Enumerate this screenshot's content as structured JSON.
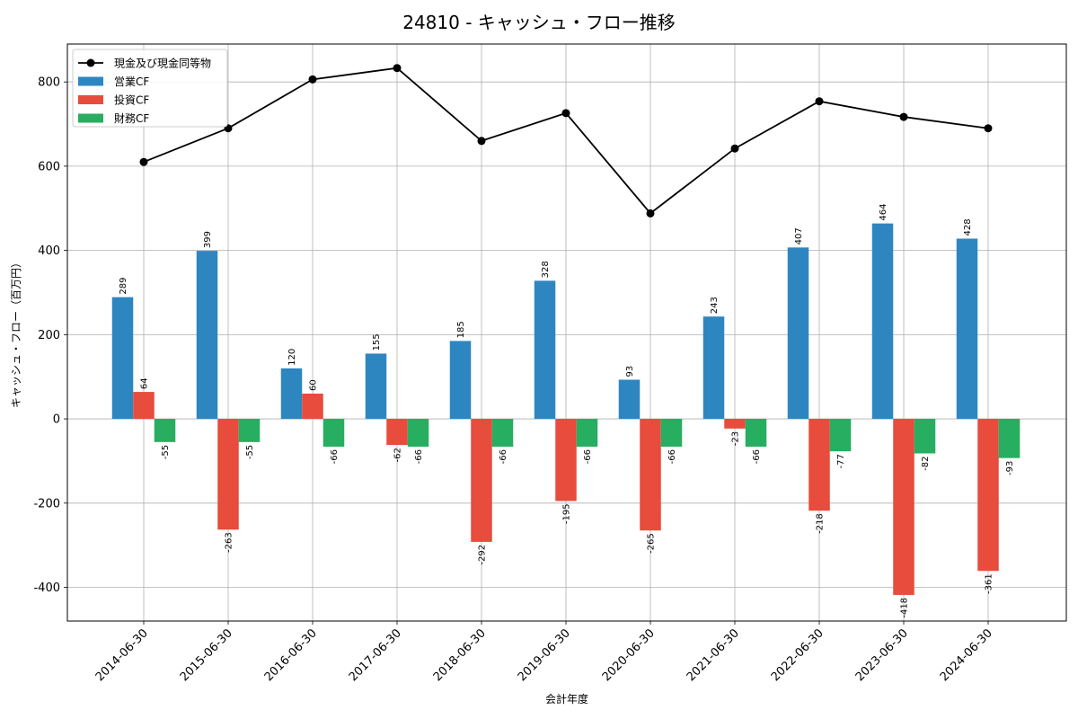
{
  "chart_data": {
    "type": "bar",
    "title": "24810 - キャッシュ・フロー推移",
    "xlabel": "会計年度",
    "ylabel": "キャッシュ・フロー（百万円）",
    "ylim": [
      -480,
      890
    ],
    "yticks": [
      -400,
      -200,
      0,
      200,
      400,
      600,
      800
    ],
    "grid": true,
    "legend_position": "top-left",
    "categories": [
      "2014-06-30",
      "2015-06-30",
      "2016-06-30",
      "2017-06-30",
      "2018-06-30",
      "2019-06-30",
      "2020-06-30",
      "2021-06-30",
      "2022-06-30",
      "2023-06-30",
      "2024-06-30"
    ],
    "series": [
      {
        "name": "営業CF",
        "kind": "bar",
        "color": "#2e86c1",
        "values": [
          289,
          399,
          120,
          155,
          185,
          328,
          93,
          243,
          407,
          464,
          428
        ]
      },
      {
        "name": "投資CF",
        "kind": "bar",
        "color": "#e74c3c",
        "values": [
          64,
          -263,
          60,
          -62,
          -292,
          -195,
          -265,
          -23,
          -218,
          -418,
          -361
        ]
      },
      {
        "name": "財務CF",
        "kind": "bar",
        "color": "#27ae60",
        "values": [
          -55,
          -55,
          -66,
          -66,
          -66,
          -66,
          -66,
          -66,
          -77,
          -82,
          -93
        ]
      },
      {
        "name": "現金及び現金同等物",
        "kind": "line",
        "color": "#000000",
        "values": [
          610,
          690,
          806,
          833,
          660,
          726,
          488,
          642,
          754,
          717,
          690
        ]
      }
    ]
  }
}
